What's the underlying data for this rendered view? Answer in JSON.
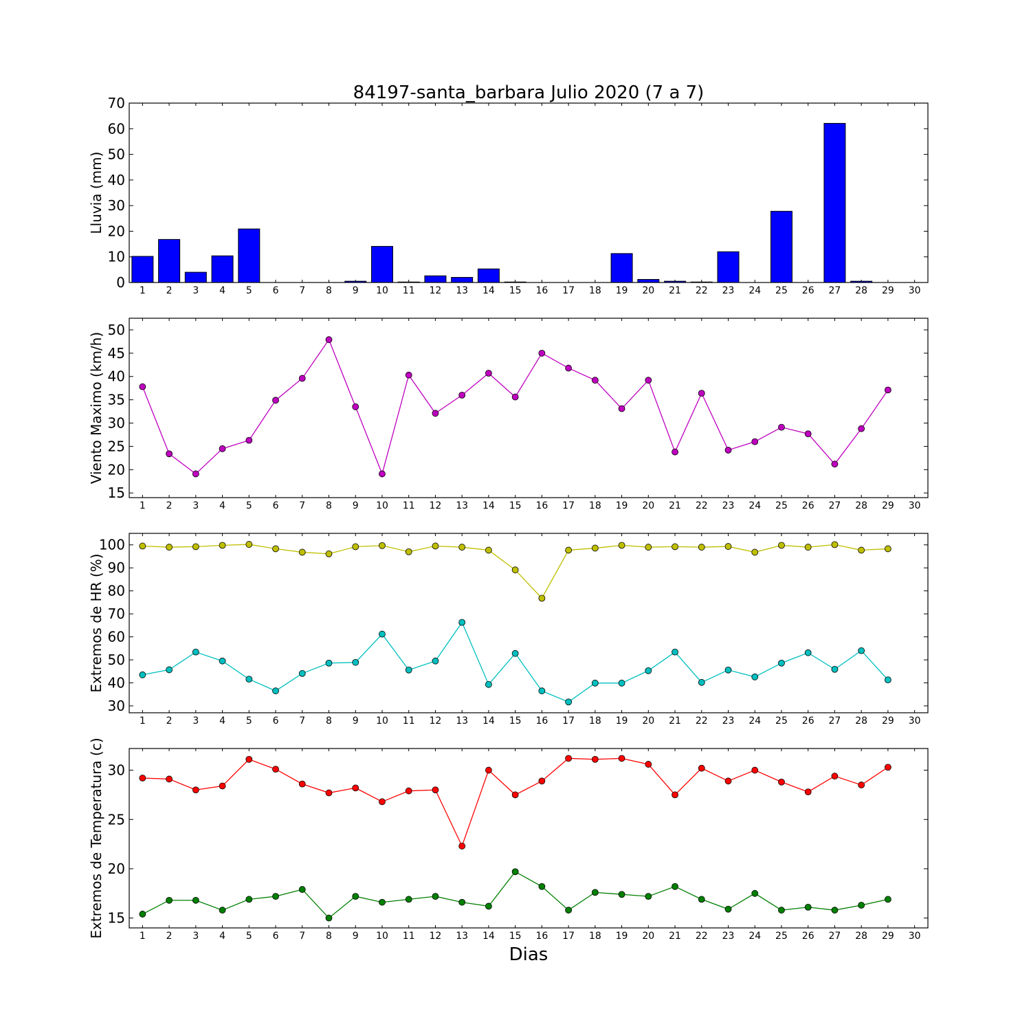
{
  "chart_data": {
    "title": "84197-santa_barbara Julio 2020  (7 a 7)",
    "xlabel": "Dias",
    "x_ticks": [
      1,
      2,
      3,
      4,
      5,
      6,
      7,
      8,
      9,
      10,
      11,
      12,
      13,
      14,
      15,
      16,
      17,
      18,
      19,
      20,
      21,
      22,
      23,
      24,
      25,
      26,
      27,
      28,
      29,
      30
    ],
    "panels": [
      {
        "type": "bar",
        "ylabel": "Lluvia (mm)",
        "ylim": [
          0,
          70
        ],
        "yticks": [
          0,
          10,
          20,
          30,
          40,
          50,
          60,
          70
        ],
        "series": [
          {
            "color": "#0000ff",
            "days": [
              1,
              2,
              3,
              4,
              5,
              6,
              7,
              8,
              9,
              10,
              11,
              12,
              13,
              14,
              15,
              16,
              17,
              18,
              19,
              20,
              21,
              22,
              23,
              24,
              25,
              26,
              27,
              28,
              29
            ],
            "values": [
              10.2,
              16.8,
              4,
              10.4,
              20.9,
              0,
              0,
              0,
              0.5,
              14.1,
              0.2,
              2.6,
              2,
              5.3,
              0.2,
              0,
              0,
              0,
              11.3,
              1.2,
              0.5,
              0.2,
              12,
              0,
              27.8,
              0,
              62.1,
              0.5,
              0
            ]
          }
        ]
      },
      {
        "type": "line",
        "ylabel": "Viento Maximo (km/h)",
        "ylim": [
          14,
          52.5
        ],
        "yticks": [
          15,
          20,
          25,
          30,
          35,
          40,
          45,
          50
        ],
        "series": [
          {
            "color": "#bf00bf",
            "days": [
              1,
              2,
              3,
              4,
              5,
              6,
              7,
              8,
              9,
              10,
              11,
              12,
              13,
              14,
              15,
              16,
              17,
              18,
              19,
              20,
              21,
              22,
              23,
              24,
              25,
              26,
              27,
              28,
              29
            ],
            "values": [
              37.8,
              23.4,
              19.1,
              24.5,
              26.3,
              34.9,
              39.6,
              47.9,
              33.5,
              19.1,
              40.3,
              32.1,
              36,
              40.7,
              35.6,
              45,
              41.8,
              39.2,
              33.1,
              39.2,
              23.8,
              36.4,
              24.2,
              26,
              29.1,
              27.7,
              21.2,
              28.8,
              37.1
            ]
          }
        ]
      },
      {
        "type": "line",
        "ylabel": "Extremos de HR (%)",
        "ylim": [
          27,
          105
        ],
        "yticks": [
          30,
          40,
          50,
          60,
          70,
          80,
          90,
          100
        ],
        "series": [
          {
            "color": "#bfbf00",
            "days": [
              1,
              2,
              3,
              4,
              5,
              6,
              7,
              8,
              9,
              10,
              11,
              12,
              13,
              14,
              15,
              16,
              17,
              18,
              19,
              20,
              21,
              22,
              23,
              24,
              25,
              26,
              27,
              28,
              29
            ],
            "values": [
              99.5,
              99,
              99.2,
              99.8,
              100.2,
              98.3,
              96.8,
              96.1,
              99.2,
              99.7,
              97,
              99.5,
              99,
              97.7,
              89.1,
              76.8,
              97.7,
              98.6,
              99.8,
              99,
              99.2,
              99,
              99.3,
              96.8,
              99.8,
              99,
              100.1,
              97.7,
              98.3
            ]
          },
          {
            "color": "#00bfbf",
            "days": [
              1,
              2,
              3,
              4,
              5,
              6,
              7,
              8,
              9,
              10,
              11,
              12,
              13,
              14,
              15,
              16,
              17,
              18,
              19,
              20,
              21,
              22,
              23,
              24,
              25,
              26,
              27,
              28,
              29
            ],
            "values": [
              43.5,
              45.7,
              53.4,
              49.5,
              41.6,
              36.5,
              44.1,
              48.6,
              48.9,
              61.2,
              45.6,
              49.5,
              66.3,
              39.3,
              52.8,
              36.5,
              31.7,
              39.9,
              39.9,
              45.3,
              53.4,
              40.2,
              45.6,
              42.6,
              48.6,
              53.1,
              45.9,
              54,
              41.3
            ]
          }
        ]
      },
      {
        "type": "line",
        "ylabel": "Extremos de Temperatura (c)",
        "ylim": [
          14,
          32.2
        ],
        "yticks": [
          15,
          20,
          25,
          30
        ],
        "series": [
          {
            "color": "#ff0000",
            "days": [
              1,
              2,
              3,
              4,
              5,
              6,
              7,
              8,
              9,
              10,
              11,
              12,
              13,
              14,
              15,
              16,
              17,
              18,
              19,
              20,
              21,
              22,
              23,
              24,
              25,
              26,
              27,
              28,
              29
            ],
            "values": [
              29.2,
              29.1,
              28,
              28.4,
              31.1,
              30.1,
              28.6,
              27.7,
              28.2,
              26.8,
              27.9,
              28,
              22.3,
              30,
              27.5,
              28.9,
              31.2,
              31.1,
              31.2,
              30.6,
              27.5,
              30.2,
              28.9,
              30,
              28.8,
              27.8,
              29.4,
              28.5,
              30.3
            ]
          },
          {
            "color": "#007f00",
            "days": [
              1,
              2,
              3,
              4,
              5,
              6,
              7,
              8,
              9,
              10,
              11,
              12,
              13,
              14,
              15,
              16,
              17,
              18,
              19,
              20,
              21,
              22,
              23,
              24,
              25,
              26,
              27,
              28,
              29
            ],
            "values": [
              15.4,
              16.8,
              16.8,
              15.8,
              16.9,
              17.2,
              17.9,
              15,
              17.2,
              16.6,
              16.9,
              17.2,
              16.6,
              16.2,
              19.7,
              18.2,
              15.8,
              17.6,
              17.4,
              17.2,
              18.2,
              16.9,
              15.9,
              17.5,
              15.8,
              16.1,
              15.8,
              16.3,
              16.9
            ]
          }
        ]
      }
    ]
  }
}
